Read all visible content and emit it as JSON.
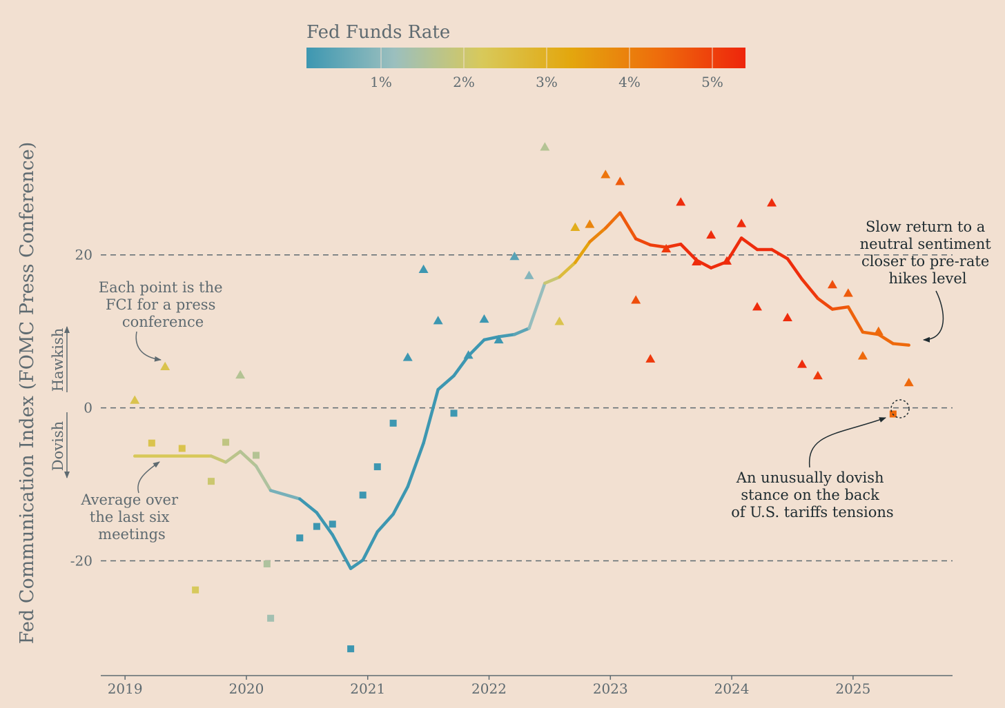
{
  "chart_data": {
    "type": "scatter",
    "title": "",
    "ylabel": "Fed Communication Index (FOMC Press Conference)",
    "xlabel": "",
    "xlim": [
      2018.8,
      2025.82
    ],
    "ylim": [
      -35,
      38
    ],
    "x_ticks": [
      "2019",
      "2020",
      "2021",
      "2022",
      "2023",
      "2024",
      "2025"
    ],
    "y_ticks": [
      "-20",
      "0",
      "20"
    ],
    "grid": "dashed lines at -20, 0 and 20",
    "colorbar": {
      "title": "Fed Funds Rate",
      "ticks": [
        "1%",
        "2%",
        "3%",
        "4%",
        "5%"
      ],
      "range": [
        0.1,
        5.4
      ],
      "colors": [
        "#3d97b1",
        "#9bbfbe",
        "#d8c95a",
        "#e3a70e",
        "#ee6d0c",
        "#ee250c"
      ]
    },
    "direction_labels": {
      "up": "Hawkish",
      "down": "Dovish"
    },
    "points": [
      {
        "x": 2019.08,
        "y": 1.0,
        "rate": 2.4,
        "marker": "triangle"
      },
      {
        "x": 2019.22,
        "y": -4.6,
        "rate": 2.4,
        "marker": "square"
      },
      {
        "x": 2019.33,
        "y": 5.4,
        "rate": 2.4,
        "marker": "triangle"
      },
      {
        "x": 2019.47,
        "y": -5.3,
        "rate": 2.4,
        "marker": "square"
      },
      {
        "x": 2019.58,
        "y": -23.8,
        "rate": 2.2,
        "marker": "square"
      },
      {
        "x": 2019.71,
        "y": -9.6,
        "rate": 2.0,
        "marker": "square"
      },
      {
        "x": 2019.83,
        "y": -4.5,
        "rate": 1.8,
        "marker": "square"
      },
      {
        "x": 2019.95,
        "y": 4.3,
        "rate": 1.6,
        "marker": "triangle"
      },
      {
        "x": 2020.08,
        "y": -6.2,
        "rate": 1.6,
        "marker": "square"
      },
      {
        "x": 2020.17,
        "y": -20.4,
        "rate": 1.5,
        "marker": "square"
      },
      {
        "x": 2020.2,
        "y": -27.5,
        "rate": 1.3,
        "marker": "square"
      },
      {
        "x": 2020.44,
        "y": -17.0,
        "rate": 0.1,
        "marker": "square"
      },
      {
        "x": 2020.58,
        "y": -15.5,
        "rate": 0.1,
        "marker": "square"
      },
      {
        "x": 2020.71,
        "y": -15.2,
        "rate": 0.1,
        "marker": "square"
      },
      {
        "x": 2020.86,
        "y": -31.5,
        "rate": 0.1,
        "marker": "square"
      },
      {
        "x": 2020.96,
        "y": -11.4,
        "rate": 0.1,
        "marker": "square"
      },
      {
        "x": 2021.08,
        "y": -7.7,
        "rate": 0.1,
        "marker": "square"
      },
      {
        "x": 2021.21,
        "y": -2.0,
        "rate": 0.1,
        "marker": "square"
      },
      {
        "x": 2021.33,
        "y": 6.6,
        "rate": 0.1,
        "marker": "triangle"
      },
      {
        "x": 2021.46,
        "y": 18.1,
        "rate": 0.1,
        "marker": "triangle"
      },
      {
        "x": 2021.58,
        "y": 11.4,
        "rate": 0.1,
        "marker": "triangle"
      },
      {
        "x": 2021.71,
        "y": -0.7,
        "rate": 0.1,
        "marker": "square"
      },
      {
        "x": 2021.83,
        "y": 6.9,
        "rate": 0.1,
        "marker": "triangle"
      },
      {
        "x": 2021.96,
        "y": 11.6,
        "rate": 0.1,
        "marker": "triangle"
      },
      {
        "x": 2022.08,
        "y": 8.9,
        "rate": 0.1,
        "marker": "triangle"
      },
      {
        "x": 2022.21,
        "y": 19.8,
        "rate": 0.4,
        "marker": "triangle"
      },
      {
        "x": 2022.33,
        "y": 17.3,
        "rate": 0.9,
        "marker": "triangle"
      },
      {
        "x": 2022.46,
        "y": 34.1,
        "rate": 1.6,
        "marker": "triangle"
      },
      {
        "x": 2022.58,
        "y": 11.3,
        "rate": 2.4,
        "marker": "triangle"
      },
      {
        "x": 2022.71,
        "y": 23.6,
        "rate": 3.1,
        "marker": "triangle"
      },
      {
        "x": 2022.83,
        "y": 24.0,
        "rate": 3.9,
        "marker": "triangle"
      },
      {
        "x": 2022.96,
        "y": 30.5,
        "rate": 4.2,
        "marker": "triangle"
      },
      {
        "x": 2023.08,
        "y": 29.6,
        "rate": 4.6,
        "marker": "triangle"
      },
      {
        "x": 2023.21,
        "y": 14.1,
        "rate": 4.8,
        "marker": "triangle"
      },
      {
        "x": 2023.33,
        "y": 6.4,
        "rate": 5.1,
        "marker": "triangle"
      },
      {
        "x": 2023.46,
        "y": 20.8,
        "rate": 5.1,
        "marker": "triangle"
      },
      {
        "x": 2023.58,
        "y": 26.9,
        "rate": 5.3,
        "marker": "triangle"
      },
      {
        "x": 2023.71,
        "y": 19.1,
        "rate": 5.3,
        "marker": "triangle"
      },
      {
        "x": 2023.83,
        "y": 22.6,
        "rate": 5.3,
        "marker": "triangle"
      },
      {
        "x": 2023.96,
        "y": 19.2,
        "rate": 5.3,
        "marker": "triangle"
      },
      {
        "x": 2024.08,
        "y": 24.1,
        "rate": 5.3,
        "marker": "triangle"
      },
      {
        "x": 2024.21,
        "y": 13.2,
        "rate": 5.3,
        "marker": "triangle"
      },
      {
        "x": 2024.33,
        "y": 26.8,
        "rate": 5.3,
        "marker": "triangle"
      },
      {
        "x": 2024.46,
        "y": 11.8,
        "rate": 5.3,
        "marker": "triangle"
      },
      {
        "x": 2024.58,
        "y": 5.7,
        "rate": 5.3,
        "marker": "triangle"
      },
      {
        "x": 2024.71,
        "y": 4.2,
        "rate": 5.1,
        "marker": "triangle"
      },
      {
        "x": 2024.83,
        "y": 16.1,
        "rate": 4.8,
        "marker": "triangle"
      },
      {
        "x": 2024.96,
        "y": 15.0,
        "rate": 4.6,
        "marker": "triangle"
      },
      {
        "x": 2025.08,
        "y": 6.8,
        "rate": 4.4,
        "marker": "triangle"
      },
      {
        "x": 2025.21,
        "y": 10.0,
        "rate": 4.4,
        "marker": "triangle"
      },
      {
        "x": 2025.33,
        "y": -0.8,
        "rate": 4.4,
        "marker": "square"
      },
      {
        "x": 2025.46,
        "y": 3.3,
        "rate": 4.4,
        "marker": "triangle"
      }
    ],
    "moving_average": {
      "name": "",
      "points": [
        {
          "x": 2019.08,
          "y": -6.3,
          "rate": 2.4
        },
        {
          "x": 2019.71,
          "y": -6.3,
          "rate": 2.1
        },
        {
          "x": 2019.83,
          "y": -7.1,
          "rate": 1.8
        },
        {
          "x": 2019.95,
          "y": -5.7,
          "rate": 1.6
        },
        {
          "x": 2020.08,
          "y": -7.6,
          "rate": 1.6
        },
        {
          "x": 2020.2,
          "y": -10.8,
          "rate": 1.4
        },
        {
          "x": 2020.44,
          "y": -11.9,
          "rate": 0.1
        },
        {
          "x": 2020.58,
          "y": -13.7,
          "rate": 0.1
        },
        {
          "x": 2020.71,
          "y": -16.6,
          "rate": 0.1
        },
        {
          "x": 2020.86,
          "y": -21.0,
          "rate": 0.1
        },
        {
          "x": 2020.96,
          "y": -19.9,
          "rate": 0.1
        },
        {
          "x": 2021.08,
          "y": -16.2,
          "rate": 0.1
        },
        {
          "x": 2021.21,
          "y": -13.9,
          "rate": 0.1
        },
        {
          "x": 2021.33,
          "y": -10.3,
          "rate": 0.1
        },
        {
          "x": 2021.46,
          "y": -4.6,
          "rate": 0.1
        },
        {
          "x": 2021.58,
          "y": 2.4,
          "rate": 0.1
        },
        {
          "x": 2021.71,
          "y": 4.2,
          "rate": 0.1
        },
        {
          "x": 2021.83,
          "y": 6.8,
          "rate": 0.1
        },
        {
          "x": 2021.96,
          "y": 8.9,
          "rate": 0.1
        },
        {
          "x": 2022.08,
          "y": 9.3,
          "rate": 0.1
        },
        {
          "x": 2022.21,
          "y": 9.6,
          "rate": 0.3
        },
        {
          "x": 2022.33,
          "y": 10.4,
          "rate": 0.6
        },
        {
          "x": 2022.46,
          "y": 16.3,
          "rate": 1.6
        },
        {
          "x": 2022.58,
          "y": 17.1,
          "rate": 2.3
        },
        {
          "x": 2022.71,
          "y": 19.0,
          "rate": 3.0
        },
        {
          "x": 2022.83,
          "y": 21.7,
          "rate": 3.7
        },
        {
          "x": 2022.96,
          "y": 23.5,
          "rate": 4.1
        },
        {
          "x": 2023.08,
          "y": 25.5,
          "rate": 4.5
        },
        {
          "x": 2023.21,
          "y": 22.1,
          "rate": 4.8
        },
        {
          "x": 2023.33,
          "y": 21.3,
          "rate": 5.0
        },
        {
          "x": 2023.46,
          "y": 21.0,
          "rate": 5.1
        },
        {
          "x": 2023.58,
          "y": 21.4,
          "rate": 5.3
        },
        {
          "x": 2023.71,
          "y": 19.3,
          "rate": 5.3
        },
        {
          "x": 2023.83,
          "y": 18.3,
          "rate": 5.3
        },
        {
          "x": 2023.96,
          "y": 19.1,
          "rate": 5.3
        },
        {
          "x": 2024.08,
          "y": 22.2,
          "rate": 5.3
        },
        {
          "x": 2024.21,
          "y": 20.7,
          "rate": 5.3
        },
        {
          "x": 2024.33,
          "y": 20.7,
          "rate": 5.3
        },
        {
          "x": 2024.46,
          "y": 19.5,
          "rate": 5.3
        },
        {
          "x": 2024.58,
          "y": 16.8,
          "rate": 5.3
        },
        {
          "x": 2024.71,
          "y": 14.3,
          "rate": 5.0
        },
        {
          "x": 2024.83,
          "y": 12.9,
          "rate": 4.8
        },
        {
          "x": 2024.96,
          "y": 13.2,
          "rate": 4.6
        },
        {
          "x": 2025.08,
          "y": 9.9,
          "rate": 4.4
        },
        {
          "x": 2025.21,
          "y": 9.6,
          "rate": 4.4
        },
        {
          "x": 2025.33,
          "y": 8.4,
          "rate": 4.4
        },
        {
          "x": 2025.46,
          "y": 8.2,
          "rate": 4.4
        }
      ]
    },
    "annotations": {
      "points_note": [
        "Each point is the",
        "FCI for a press",
        "conference"
      ],
      "average_note": [
        "Average over",
        "the last six",
        "meetings"
      ],
      "return_note": [
        "Slow return to a",
        "neutral sentiment",
        "closer to pre-rate",
        "hikes level"
      ],
      "dovish_note": [
        "An unusually dovish",
        "stance on the back",
        "of U.S. tariffs tensions"
      ]
    }
  }
}
